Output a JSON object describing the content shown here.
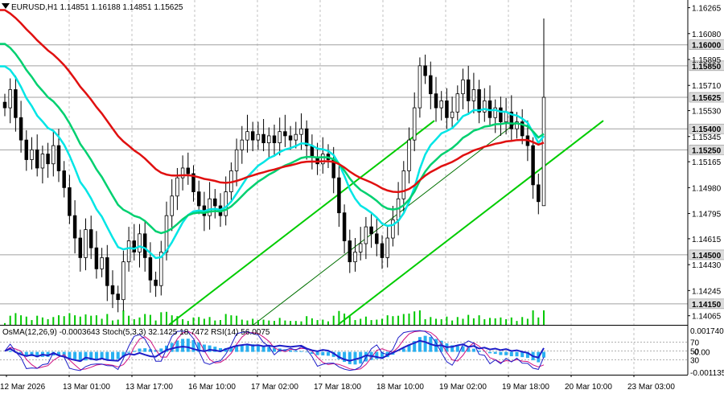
{
  "header": {
    "symbol_line": "EURUSD,H1  1.14851 1.16188 1.14851 1.15625",
    "indicator_line": "OsMA(12,26,9) -0.0003643  Stoch(5,3,3) 32.1425 18.7472  RSI(14) 56.0075"
  },
  "chart_data": {
    "type": "candlestick",
    "symbol": "EURUSD",
    "timeframe": "H1",
    "ohlc_last": {
      "open": 1.14851,
      "high": 1.16188,
      "low": 1.14851,
      "close": 1.15625
    },
    "ylim": [
      1.14,
      1.1632
    ],
    "price_ticks": [
      "1.16265",
      "1.16080",
      "1.15895",
      "1.15710",
      "1.15530",
      "1.15345",
      "1.15165",
      "1.14980",
      "1.14795",
      "1.14615",
      "1.14430",
      "1.14245",
      "1.14065"
    ],
    "price_tick_values": [
      1.16265,
      1.1608,
      1.15895,
      1.1571,
      1.1553,
      1.15345,
      1.15165,
      1.1498,
      1.14795,
      1.14615,
      1.1443,
      1.14245,
      1.14065
    ],
    "levels": [
      {
        "label": "1.16000",
        "value": 1.16
      },
      {
        "label": "1.15850",
        "value": 1.1585
      },
      {
        "label": "1.15625",
        "value": 1.15625
      },
      {
        "label": "1.15400",
        "value": 1.154
      },
      {
        "label": "1.15250",
        "value": 1.1525
      },
      {
        "label": "1.14500",
        "value": 1.145
      },
      {
        "label": "1.14150",
        "value": 1.1415
      }
    ],
    "time_labels": [
      "12 Mar 2026",
      "13 Mar 01:00",
      "13 Mar 17:00",
      "16 Mar 10:00",
      "17 Mar 02:00",
      "17 Mar 18:00",
      "18 Mar 10:00",
      "19 Mar 02:00",
      "19 Mar 18:00",
      "20 Mar 10:00",
      "23 Mar 03:00"
    ],
    "closes": [
      1.1555,
      1.1568,
      1.1548,
      1.1532,
      1.1518,
      1.1525,
      1.1512,
      1.1522,
      1.1515,
      1.1528,
      1.151,
      1.1498,
      1.1478,
      1.1462,
      1.1448,
      1.1468,
      1.1455,
      1.144,
      1.1448,
      1.1428,
      1.1422,
      1.1418,
      1.1445,
      1.146,
      1.1452,
      1.1465,
      1.1448,
      1.1432,
      1.1428,
      1.1452,
      1.1478,
      1.1492,
      1.1505,
      1.1512,
      1.1508,
      1.1495,
      1.1485,
      1.1478,
      1.149,
      1.1485,
      1.1478,
      1.1495,
      1.151,
      1.1525,
      1.1532,
      1.1538,
      1.1532,
      1.1536,
      1.153,
      1.1535,
      1.153,
      1.1538,
      1.1535,
      1.1532,
      1.1536,
      1.154,
      1.1528,
      1.152,
      1.1515,
      1.1522,
      1.1518,
      1.1505,
      1.148,
      1.146,
      1.1445,
      1.1452,
      1.1458,
      1.147,
      1.1465,
      1.1458,
      1.1448,
      1.1462,
      1.1475,
      1.149,
      1.151,
      1.1532,
      1.1555,
      1.1585,
      1.1578,
      1.1565,
      1.1555,
      1.156,
      1.1548,
      1.1552,
      1.1565,
      1.1575,
      1.156,
      1.1568,
      1.1552,
      1.156,
      1.1548,
      1.1555,
      1.1545,
      1.1552,
      1.154,
      1.1545,
      1.1535,
      1.1528,
      1.15,
      1.1488,
      1.15625
    ],
    "volume_range": [
      0,
      1
    ],
    "oscillators": {
      "osma": {
        "name": "OsMA(12,26,9)",
        "value": -0.0003643,
        "scale_high": "0.001740",
        "scale_low": "-0.001135"
      },
      "stoch": {
        "name": "Stoch(5,3,3)",
        "main": 32.1425,
        "signal": 18.7472
      },
      "rsi": {
        "name": "RSI(14)",
        "value": 56.0075
      },
      "levels": [
        "70",
        "50",
        "30"
      ],
      "level_values": [
        70,
        50,
        30
      ],
      "zero_label": "0.00"
    }
  },
  "colors": {
    "bull": "#000000",
    "bear": "#000000",
    "ma_fast": "#00e5e5",
    "ma_mid": "#00d070",
    "ma_slow": "#e01010",
    "channel": "#00cc00",
    "volume": "#00c800",
    "osma": "#2ab0f0",
    "stoch_main": "#1e1ec8",
    "stoch_signal": "#d01080",
    "label_bg": "#dcdcdc",
    "grid": "#c0c0c0"
  }
}
